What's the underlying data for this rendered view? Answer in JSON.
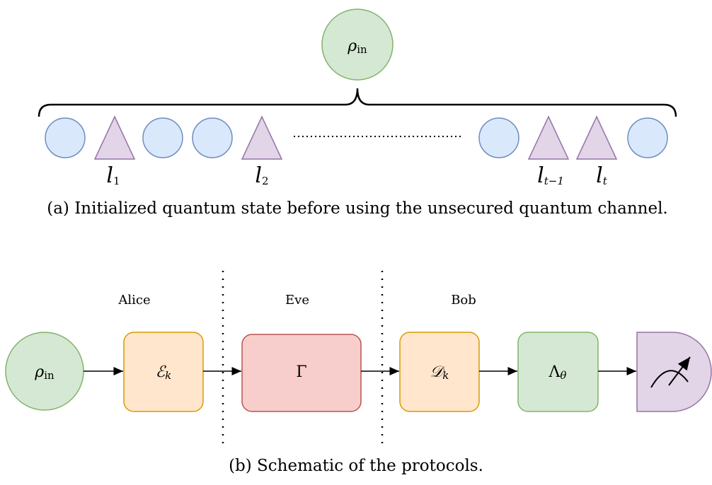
{
  "top": {
    "state": {
      "base": "ρ",
      "sub": "in"
    },
    "labels": [
      {
        "base": "l",
        "sub": "1"
      },
      {
        "base": "l",
        "sub": "2"
      },
      {
        "base": "l",
        "sub": "t−1"
      },
      {
        "base": "l",
        "sub": "t"
      }
    ],
    "caption": "(a) Initialized quantum state before using the unsecured quantum channel."
  },
  "bottom": {
    "parties": [
      "Alice",
      "Eve",
      "Bob"
    ],
    "state": {
      "base": "ρ",
      "sub": "in"
    },
    "operations": [
      {
        "base": "ℰ",
        "sub": "k"
      },
      {
        "base": "Γ"
      },
      {
        "base": "𝒟",
        "sub": "k"
      },
      {
        "base": "Λ",
        "sub": "θ"
      }
    ],
    "caption": "(b) Schematic of the protocols."
  }
}
